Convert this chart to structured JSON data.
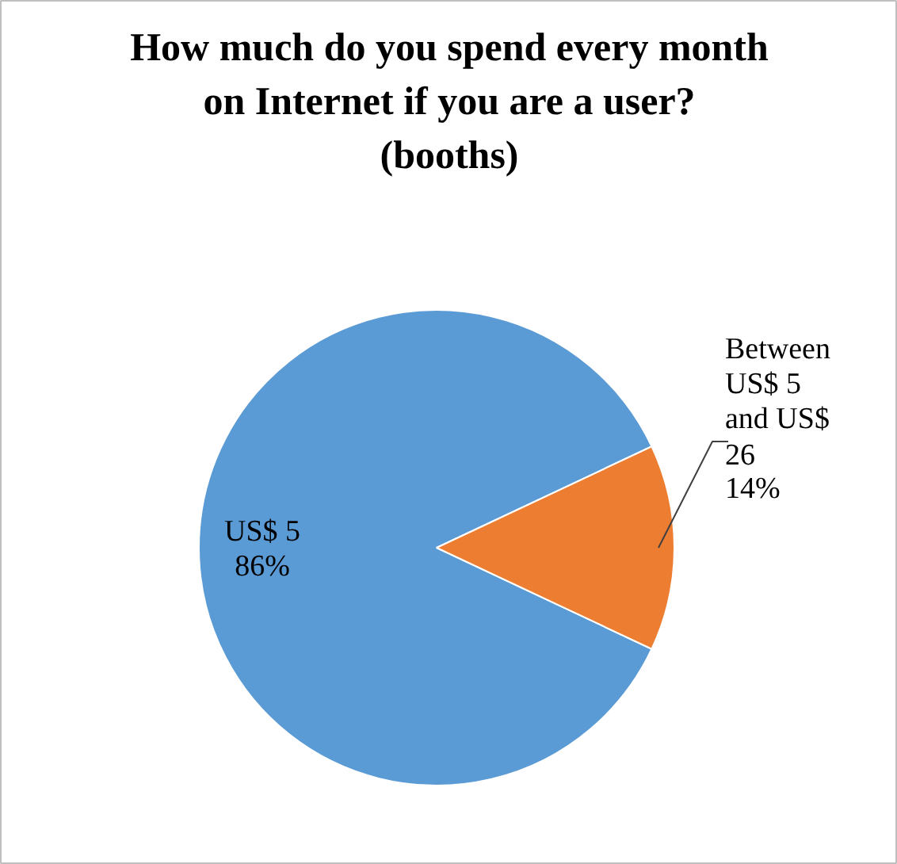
{
  "chart_data": {
    "type": "pie",
    "title": "How much do you spend every month on Internet if you are a user? (booths)",
    "categories": [
      "US$ 5",
      "Between US$ 5 and US$ 26"
    ],
    "values": [
      86,
      14
    ],
    "colors": [
      "#5b9bd5",
      "#ed7d31"
    ],
    "value_labels": [
      "86%",
      "14%"
    ]
  }
}
